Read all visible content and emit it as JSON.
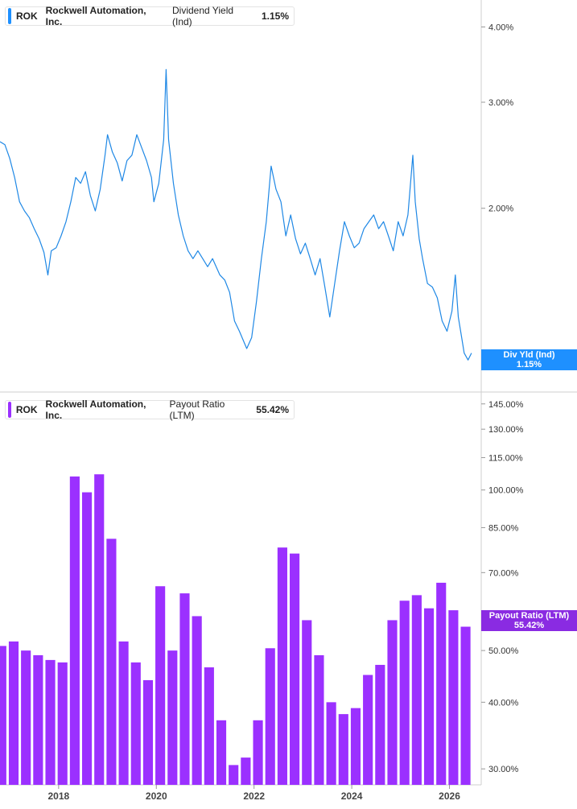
{
  "top_legend": {
    "ticker": "ROK",
    "company": "Rockwell Automation, Inc.",
    "metric": "Dividend Yield (Ind)",
    "value": "1.15%"
  },
  "bottom_legend": {
    "ticker": "ROK",
    "company": "Rockwell Automation, Inc.",
    "metric": "Payout Ratio (LTM)",
    "value": "55.42%"
  },
  "top_flag": {
    "label": "Div Yld (Ind)",
    "value": "1.15%"
  },
  "bottom_flag": {
    "label": "Payout Ratio (LTM)",
    "value": "55.42%"
  },
  "colors": {
    "yield_line": "#1f88e5",
    "payout_bars": "#9b30ff",
    "yield_flag": "#1e90ff",
    "payout_flag": "#8a2be2"
  },
  "chart_data": [
    {
      "type": "line",
      "title": "Dividend Yield (Ind)",
      "y_scale": "log",
      "ylim": [
        1.07,
        4.3
      ],
      "y_ticks": [
        "2.00%",
        "3.00%",
        "4.00%"
      ],
      "y_tick_values": [
        2.0,
        3.0,
        4.0
      ],
      "xlim": [
        2016.8,
        2026.65
      ],
      "x_ticks": [
        "2018",
        "2020",
        "2022",
        "2024",
        "2026"
      ],
      "x_tick_values": [
        2018,
        2020,
        2022,
        2024,
        2026
      ],
      "series": [
        {
          "name": "Div Yld (Ind)",
          "points": [
            [
              2016.8,
              2.58
            ],
            [
              2016.9,
              2.55
            ],
            [
              2017.0,
              2.42
            ],
            [
              2017.1,
              2.25
            ],
            [
              2017.2,
              2.05
            ],
            [
              2017.3,
              1.98
            ],
            [
              2017.4,
              1.93
            ],
            [
              2017.5,
              1.85
            ],
            [
              2017.6,
              1.78
            ],
            [
              2017.7,
              1.69
            ],
            [
              2017.78,
              1.55
            ],
            [
              2017.85,
              1.7
            ],
            [
              2017.95,
              1.72
            ],
            [
              2018.05,
              1.8
            ],
            [
              2018.15,
              1.9
            ],
            [
              2018.25,
              2.05
            ],
            [
              2018.35,
              2.25
            ],
            [
              2018.45,
              2.2
            ],
            [
              2018.55,
              2.3
            ],
            [
              2018.65,
              2.1
            ],
            [
              2018.75,
              1.98
            ],
            [
              2018.85,
              2.15
            ],
            [
              2018.95,
              2.45
            ],
            [
              2019.0,
              2.65
            ],
            [
              2019.1,
              2.48
            ],
            [
              2019.2,
              2.38
            ],
            [
              2019.3,
              2.22
            ],
            [
              2019.4,
              2.4
            ],
            [
              2019.5,
              2.45
            ],
            [
              2019.6,
              2.65
            ],
            [
              2019.7,
              2.52
            ],
            [
              2019.8,
              2.4
            ],
            [
              2019.9,
              2.25
            ],
            [
              2019.95,
              2.05
            ],
            [
              2020.05,
              2.2
            ],
            [
              2020.15,
              2.6
            ],
            [
              2020.2,
              3.4
            ],
            [
              2020.25,
              2.6
            ],
            [
              2020.35,
              2.2
            ],
            [
              2020.45,
              1.95
            ],
            [
              2020.55,
              1.8
            ],
            [
              2020.65,
              1.7
            ],
            [
              2020.75,
              1.65
            ],
            [
              2020.85,
              1.7
            ],
            [
              2020.95,
              1.65
            ],
            [
              2021.05,
              1.6
            ],
            [
              2021.15,
              1.65
            ],
            [
              2021.3,
              1.55
            ],
            [
              2021.4,
              1.52
            ],
            [
              2021.5,
              1.45
            ],
            [
              2021.6,
              1.3
            ],
            [
              2021.7,
              1.25
            ],
            [
              2021.85,
              1.17
            ],
            [
              2021.95,
              1.22
            ],
            [
              2022.05,
              1.4
            ],
            [
              2022.15,
              1.65
            ],
            [
              2022.25,
              1.9
            ],
            [
              2022.35,
              2.35
            ],
            [
              2022.45,
              2.15
            ],
            [
              2022.55,
              2.05
            ],
            [
              2022.65,
              1.8
            ],
            [
              2022.75,
              1.95
            ],
            [
              2022.85,
              1.78
            ],
            [
              2022.95,
              1.68
            ],
            [
              2023.05,
              1.75
            ],
            [
              2023.15,
              1.65
            ],
            [
              2023.25,
              1.55
            ],
            [
              2023.35,
              1.65
            ],
            [
              2023.45,
              1.48
            ],
            [
              2023.55,
              1.32
            ],
            [
              2023.65,
              1.5
            ],
            [
              2023.75,
              1.7
            ],
            [
              2023.85,
              1.9
            ],
            [
              2023.95,
              1.8
            ],
            [
              2024.05,
              1.72
            ],
            [
              2024.15,
              1.75
            ],
            [
              2024.25,
              1.85
            ],
            [
              2024.35,
              1.9
            ],
            [
              2024.45,
              1.95
            ],
            [
              2024.55,
              1.85
            ],
            [
              2024.65,
              1.9
            ],
            [
              2024.75,
              1.8
            ],
            [
              2024.85,
              1.7
            ],
            [
              2024.95,
              1.9
            ],
            [
              2025.05,
              1.8
            ],
            [
              2025.15,
              1.95
            ],
            [
              2025.25,
              2.45
            ],
            [
              2025.3,
              2.05
            ],
            [
              2025.38,
              1.78
            ],
            [
              2025.45,
              1.65
            ],
            [
              2025.55,
              1.5
            ],
            [
              2025.65,
              1.48
            ],
            [
              2025.75,
              1.42
            ],
            [
              2025.85,
              1.3
            ],
            [
              2025.95,
              1.25
            ],
            [
              2026.05,
              1.35
            ],
            [
              2026.12,
              1.55
            ],
            [
              2026.18,
              1.32
            ],
            [
              2026.25,
              1.22
            ],
            [
              2026.3,
              1.15
            ],
            [
              2026.38,
              1.12
            ],
            [
              2026.45,
              1.15
            ]
          ]
        }
      ]
    },
    {
      "type": "bar",
      "title": "Payout Ratio (LTM)",
      "y_scale": "log",
      "ylim": [
        28,
        150
      ],
      "y_ticks": [
        "30.00%",
        "40.00%",
        "50.00%",
        "70.00%",
        "85.00%",
        "100.00%",
        "115.00%",
        "130.00%",
        "145.00%"
      ],
      "y_tick_values": [
        30,
        40,
        50,
        70,
        85,
        100,
        115,
        130,
        145
      ],
      "xlim": [
        2016.8,
        2026.65
      ],
      "x_ticks": [
        "2018",
        "2020",
        "2022",
        "2024",
        "2026"
      ],
      "x_tick_values": [
        2018,
        2020,
        2022,
        2024,
        2026
      ],
      "series": [
        {
          "name": "Payout Ratio (LTM)",
          "x": [
            2016.83,
            2017.08,
            2017.33,
            2017.58,
            2017.83,
            2018.08,
            2018.33,
            2018.58,
            2018.83,
            2019.08,
            2019.33,
            2019.58,
            2019.83,
            2020.08,
            2020.33,
            2020.58,
            2020.83,
            2021.08,
            2021.33,
            2021.58,
            2021.83,
            2022.08,
            2022.33,
            2022.58,
            2022.83,
            2023.08,
            2023.33,
            2023.58,
            2023.83,
            2024.08,
            2024.33,
            2024.58,
            2024.83,
            2025.08,
            2025.33,
            2025.58,
            2025.83,
            2026.08,
            2026.33
          ],
          "values": [
            51,
            52,
            50,
            49,
            48,
            47.5,
            106,
            99,
            107,
            81,
            52,
            47.5,
            44,
            66,
            50,
            64,
            58,
            46.5,
            37,
            30.5,
            31.5,
            37,
            50.5,
            78,
            76,
            57,
            49,
            40,
            38,
            39,
            45,
            47,
            57,
            62,
            63.5,
            60,
            67,
            59.5,
            55.42
          ]
        }
      ]
    }
  ]
}
